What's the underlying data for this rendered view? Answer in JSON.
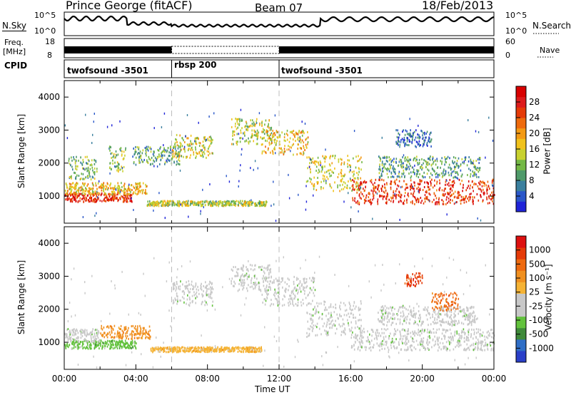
{
  "header": {
    "station": "Prince George (fitACF)",
    "beam": "Beam 07",
    "date": "18/Feb/2013"
  },
  "side_labels": {
    "nsky": "N.Sky",
    "freq": "Freq.",
    "freq_unit": "[MHz]",
    "cpid": "CPID",
    "nsearch": "N.Search",
    "nave": "Nave",
    "nsky_ticks": [
      "10^5",
      "10^0"
    ],
    "nsearch_ticks": [
      "10^5",
      "10^0"
    ],
    "freq_ticks": [
      "18",
      "8"
    ],
    "nave_ticks": [
      "60",
      "0"
    ]
  },
  "cpid_segments": [
    {
      "label": "twofsound -3501",
      "start": 0,
      "end": 6
    },
    {
      "label": "rbsp 200",
      "start": 6,
      "end": 12
    },
    {
      "label": "twofsound -3501",
      "start": 12,
      "end": 24
    }
  ],
  "chart_data": [
    {
      "type": "heatmap",
      "panel": "power",
      "ylabel": "Slant Range [km]",
      "xlabel": "Time UT",
      "xlim": [
        0,
        24
      ],
      "ylim": [
        180,
        4500
      ],
      "yticks": [
        "1000",
        "2000",
        "3000",
        "4000"
      ],
      "colorbar": {
        "label": "Power [dB]",
        "ticks": [
          "4",
          "8",
          "12",
          "16",
          "20",
          "24",
          "28"
        ],
        "colors": [
          "#1f24d8",
          "#2a57c9",
          "#3a7f9e",
          "#4f9a6a",
          "#74b845",
          "#c8d12f",
          "#f0c21c",
          "#f39a14",
          "#ee6a0c",
          "#e53a07",
          "#dd1b1b",
          "#d80000"
        ]
      },
      "regions": [
        {
          "t0": 0.0,
          "t1": 3.8,
          "r0": 820,
          "r1": 1080,
          "level": 0.85
        },
        {
          "t0": 0.0,
          "t1": 4.6,
          "r0": 1050,
          "r1": 1400,
          "level": 0.55
        },
        {
          "t0": 0.2,
          "t1": 1.8,
          "r0": 1500,
          "r1": 2200,
          "level": 0.35
        },
        {
          "t0": 2.5,
          "t1": 3.4,
          "r0": 1700,
          "r1": 2500,
          "level": 0.4
        },
        {
          "t0": 3.8,
          "t1": 6.5,
          "r0": 1950,
          "r1": 2500,
          "level": 0.3
        },
        {
          "t0": 4.6,
          "t1": 11.3,
          "r0": 700,
          "r1": 850,
          "level": 0.45
        },
        {
          "t0": 6.0,
          "t1": 8.3,
          "r0": 2150,
          "r1": 2850,
          "level": 0.5
        },
        {
          "t0": 9.3,
          "t1": 11.6,
          "r0": 2550,
          "r1": 3350,
          "level": 0.45
        },
        {
          "t0": 11.0,
          "t1": 13.6,
          "r0": 2250,
          "r1": 3000,
          "level": 0.55
        },
        {
          "t0": 13.5,
          "t1": 16.6,
          "r0": 1150,
          "r1": 2250,
          "level": 0.5
        },
        {
          "t0": 16.0,
          "t1": 24.0,
          "r0": 750,
          "r1": 1500,
          "level": 0.82
        },
        {
          "t0": 17.5,
          "t1": 23.2,
          "r0": 1550,
          "r1": 2200,
          "level": 0.3
        },
        {
          "t0": 18.5,
          "t1": 20.5,
          "r0": 2500,
          "r1": 3000,
          "level": 0.15
        }
      ]
    },
    {
      "type": "heatmap",
      "panel": "velocity",
      "ylabel": "Slant Range [km]",
      "xlabel": "Time UT",
      "xlim": [
        0,
        24
      ],
      "ylim": [
        180,
        4500
      ],
      "yticks": [
        "1000",
        "2000",
        "3000",
        "4000"
      ],
      "xticks": [
        "00:00",
        "04:00",
        "08:00",
        "12:00",
        "16:00",
        "20:00",
        "00:00"
      ],
      "colorbar": {
        "label": "Velocity [m s⁻¹]",
        "ticks": [
          "1000",
          "500",
          "100",
          "25",
          "-25",
          "-100",
          "-500",
          "-1000"
        ],
        "colors": [
          "#2a3fc8",
          "#2f6ec6",
          "#3f8a3a",
          "#62c23c",
          "#c8c8c8",
          "#c8c8c8",
          "#f5b335",
          "#f09020",
          "#ee6a10",
          "#e53a07",
          "#dd1010"
        ]
      },
      "regions": [
        {
          "t0": 0.0,
          "t1": 4.0,
          "r0": 800,
          "r1": 1050,
          "color": 3
        },
        {
          "t0": 0.0,
          "t1": 2.0,
          "r0": 1000,
          "r1": 1400,
          "color": 4
        },
        {
          "t0": 2.0,
          "t1": 4.8,
          "r0": 1100,
          "r1": 1500,
          "color": 7
        },
        {
          "t0": 4.8,
          "t1": 11.0,
          "r0": 700,
          "r1": 850,
          "color": 6
        },
        {
          "t0": 6.0,
          "t1": 8.3,
          "r0": 2100,
          "r1": 2850,
          "color": 4
        },
        {
          "t0": 9.3,
          "t1": 11.6,
          "r0": 2550,
          "r1": 3350,
          "color": 4
        },
        {
          "t0": 11.0,
          "t1": 14.0,
          "r0": 2100,
          "r1": 3000,
          "color": 4
        },
        {
          "t0": 13.5,
          "t1": 16.6,
          "r0": 1150,
          "r1": 2250,
          "color": 4
        },
        {
          "t0": 16.0,
          "t1": 24.0,
          "r0": 750,
          "r1": 1400,
          "color": 4
        },
        {
          "t0": 17.5,
          "t1": 23.0,
          "r0": 1500,
          "r1": 2100,
          "color": 4
        },
        {
          "t0": 20.5,
          "t1": 22.0,
          "r0": 1950,
          "r1": 2500,
          "color": 8
        },
        {
          "t0": 19.0,
          "t1": 20.0,
          "r0": 2700,
          "r1": 3100,
          "color": 9
        }
      ]
    }
  ]
}
